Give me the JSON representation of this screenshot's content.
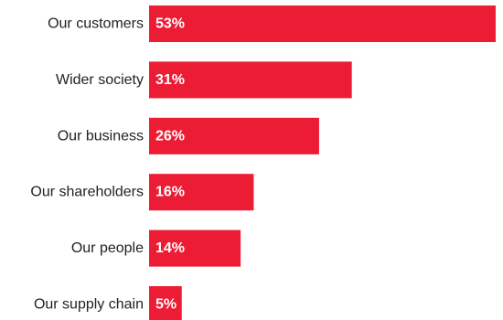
{
  "chart_data": {
    "type": "bar",
    "orientation": "horizontal",
    "categories": [
      "Our customers",
      "Wider society",
      "Our business",
      "Our shareholders",
      "Our people",
      "Our supply chain"
    ],
    "values": [
      53,
      31,
      26,
      16,
      14,
      5
    ],
    "value_labels": [
      "53%",
      "31%",
      "26%",
      "16%",
      "14%",
      "5%"
    ],
    "unit": "%",
    "xlim": [
      0,
      53
    ],
    "title": "",
    "xlabel": "",
    "ylabel": "",
    "grid": false,
    "legend": "none",
    "bar_color": "#ED1C35",
    "label_color": "#222222",
    "value_label_color": "#ffffff"
  }
}
